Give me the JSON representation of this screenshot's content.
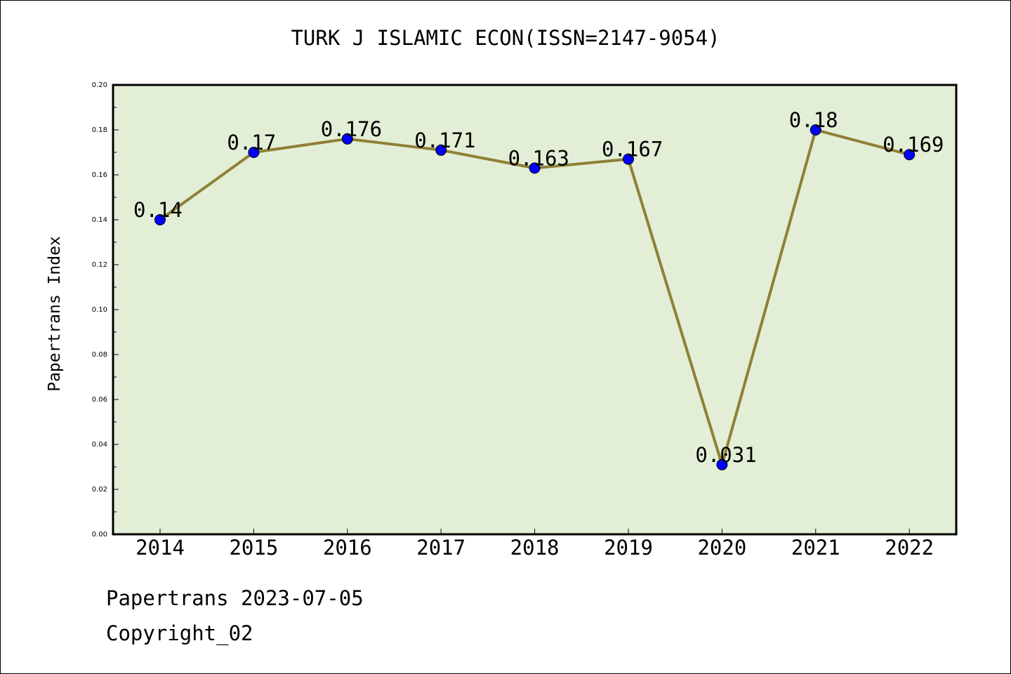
{
  "chart_data": {
    "type": "line",
    "title": "TURK J ISLAMIC ECON(ISSN=2147-9054)",
    "xlabel": "",
    "ylabel": "Papertrans Index",
    "categories": [
      "2014",
      "2015",
      "2016",
      "2017",
      "2018",
      "2019",
      "2020",
      "2021",
      "2022"
    ],
    "values": [
      0.14,
      0.17,
      0.176,
      0.171,
      0.163,
      0.167,
      0.031,
      0.18,
      0.169
    ],
    "data_labels": [
      "0.14",
      "0.17",
      "0.176",
      "0.171",
      "0.163",
      "0.167",
      "0.031",
      "0.18",
      "0.169"
    ],
    "ylim": [
      0,
      0.2
    ],
    "yticks": [
      "0.00",
      "0.02",
      "0.04",
      "0.06",
      "0.08",
      "0.10",
      "0.12",
      "0.14",
      "0.16",
      "0.18",
      "0.20"
    ],
    "grid": false,
    "legend": "none",
    "colors": {
      "line": "#8f8035",
      "marker": "#0000ff",
      "plot_background": "#e2efd6"
    }
  },
  "footer": {
    "date_line": "Papertrans 2023-07-05",
    "copyright": "Copyright_02"
  }
}
